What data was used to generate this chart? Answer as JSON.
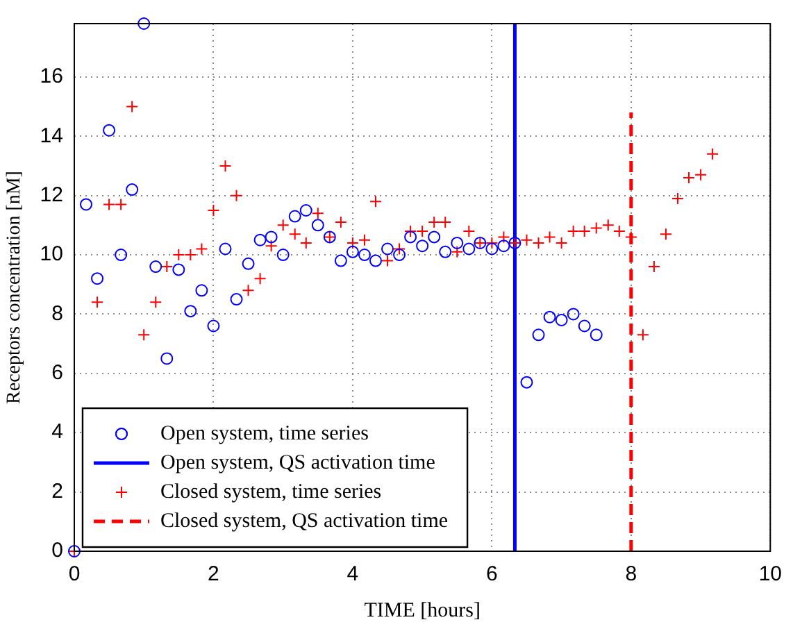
{
  "chart_data": {
    "type": "scatter",
    "xlabel": "TIME [hours]",
    "ylabel": "Receptors concentration [nM]",
    "xlim": [
      0,
      10
    ],
    "xticks": [
      0,
      2,
      4,
      6,
      8,
      10
    ],
    "ylim": [
      0,
      17.8
    ],
    "yticks": [
      0,
      2,
      4,
      6,
      8,
      10,
      12,
      14,
      16
    ],
    "grid": true,
    "legend": "bottom left",
    "series": [
      {
        "name": "Open system, time series",
        "type": "scatter",
        "marker": "circle",
        "color": "#0000ff",
        "x": [
          0,
          0.17,
          0.33,
          0.5,
          0.67,
          0.83,
          1.0,
          1.17,
          1.33,
          1.5,
          1.67,
          1.83,
          2.0,
          2.17,
          2.33,
          2.5,
          2.67,
          2.83,
          3.0,
          3.17,
          3.33,
          3.5,
          3.67,
          3.83,
          4.0,
          4.17,
          4.33,
          4.5,
          4.67,
          4.83,
          5.0,
          5.17,
          5.33,
          5.5,
          5.67,
          5.83,
          6.0,
          6.17,
          6.33,
          6.5,
          6.67,
          6.83,
          7.0,
          7.17,
          7.33,
          7.5
        ],
        "values": [
          0,
          11.7,
          9.2,
          14.2,
          10.0,
          12.2,
          17.8,
          9.6,
          6.5,
          9.5,
          8.1,
          8.8,
          7.6,
          10.2,
          8.5,
          9.7,
          10.5,
          10.6,
          10.0,
          11.3,
          11.5,
          11.0,
          10.6,
          9.8,
          10.1,
          10.0,
          9.8,
          10.2,
          10.0,
          10.6,
          10.3,
          10.6,
          10.1,
          10.4,
          10.2,
          10.4,
          10.2,
          10.3,
          10.4,
          5.7,
          7.3,
          7.9,
          7.8,
          8.0,
          7.6,
          7.3
        ]
      },
      {
        "name": "Open system, QS activation time",
        "type": "line",
        "line_style": "solid",
        "color": "#0000ff",
        "x": [
          6.33,
          6.33
        ],
        "values": [
          0,
          17.8
        ]
      },
      {
        "name": "Closed system, time series",
        "type": "scatter",
        "marker": "cross",
        "color": "#ff0000",
        "x": [
          0,
          0.33,
          0.5,
          0.67,
          0.83,
          1.0,
          1.17,
          1.33,
          1.5,
          1.67,
          1.83,
          2.0,
          2.17,
          2.33,
          2.5,
          2.67,
          2.83,
          3.0,
          3.17,
          3.33,
          3.5,
          3.67,
          3.83,
          4.0,
          4.17,
          4.33,
          4.5,
          4.67,
          4.83,
          5.0,
          5.17,
          5.33,
          5.5,
          5.67,
          5.83,
          6.0,
          6.17,
          6.33,
          6.5,
          6.67,
          6.83,
          7.0,
          7.17,
          7.33,
          7.5,
          7.67,
          7.83,
          8.0,
          8.17,
          8.33,
          8.5,
          8.67,
          8.83,
          9.0,
          9.17
        ],
        "values": [
          0,
          8.4,
          11.7,
          11.7,
          15.0,
          7.3,
          8.4,
          9.6,
          10.0,
          10.0,
          10.2,
          11.5,
          13.0,
          12.0,
          8.8,
          9.2,
          10.3,
          11.0,
          10.7,
          10.4,
          11.4,
          10.6,
          11.1,
          10.4,
          10.5,
          11.8,
          9.8,
          10.2,
          10.8,
          10.8,
          11.1,
          11.1,
          10.1,
          10.8,
          10.4,
          10.4,
          10.6,
          10.4,
          10.5,
          10.4,
          10.6,
          10.4,
          10.8,
          10.8,
          10.9,
          11.0,
          10.8,
          10.6,
          7.3,
          9.6,
          10.7,
          11.9,
          12.6,
          12.7,
          13.4
        ]
      },
      {
        "name": "Closed system, QS activation time",
        "type": "line",
        "line_style": "dashed",
        "color": "#ff0000",
        "x": [
          8,
          8
        ],
        "values": [
          0,
          14.8
        ]
      }
    ]
  }
}
